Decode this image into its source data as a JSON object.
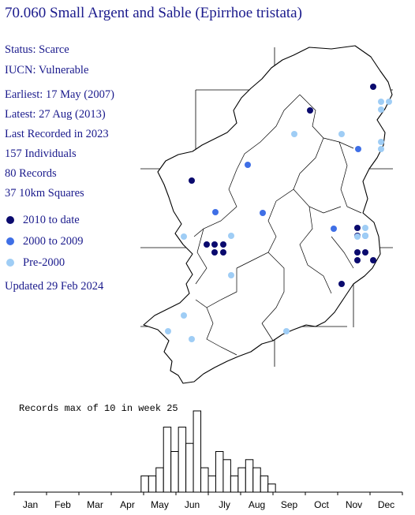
{
  "title": "70.060 Small Argent and Sable (Epirrhoe tristata)",
  "info": {
    "status": "Status: Scarce",
    "iucn": "IUCN: Vulnerable",
    "earliest": "Earliest: 17 May (2007)",
    "latest": "Latest: 27 Aug (2013)",
    "last_recorded": "Last Recorded in 2023",
    "individuals": "157 Individuals",
    "records": "80 Records",
    "squares": "37 10km Squares"
  },
  "legend": [
    {
      "label": "2010 to date",
      "color": "#0a0a6e"
    },
    {
      "label": "2000 to 2009",
      "color": "#3f6fe6"
    },
    {
      "label": "Pre-2000",
      "color": "#9fcdf5"
    }
  ],
  "updated": "Updated 29 Feb 2024",
  "histogram": {
    "label": "Records max of 10 in week 25",
    "max": 10,
    "months": [
      "Jan",
      "Feb",
      "Mar",
      "Apr",
      "May",
      "Jun",
      "Jly",
      "Aug",
      "Sep",
      "Oct",
      "Nov",
      "Dec"
    ],
    "weeks": [
      18,
      19,
      20,
      21,
      22,
      23,
      24,
      25,
      26,
      27,
      28,
      29,
      30,
      31,
      32,
      33,
      34,
      35,
      36
    ],
    "values": [
      2,
      2,
      3,
      8,
      5,
      8,
      6,
      10,
      3,
      2,
      5,
      4,
      2,
      3,
      4,
      3,
      2,
      1,
      0
    ]
  },
  "map": {
    "grid_lines": "gray",
    "records": [
      {
        "period": "2010 to date",
        "coords": [
          [
            47,
            5
          ],
          [
            42,
            21
          ],
          [
            -8,
            23
          ],
          [
            -8,
            34
          ],
          [
            -8,
            35
          ],
          [
            -8,
            36
          ],
          [
            -8,
            37
          ],
          [
            -8,
            38
          ],
          [
            -7,
            35
          ],
          [
            -7,
            36
          ],
          [
            -7,
            38
          ],
          [
            -6,
            38
          ]
        ]
      },
      {
        "period": "2000 to 2009",
        "coords": [
          [
            -8,
            25
          ],
          [
            -7,
            26
          ],
          [
            -6,
            31
          ],
          [
            -6,
            34
          ],
          [
            -6,
            32
          ]
        ]
      },
      {
        "period": "Pre-2000",
        "coords": [
          [
            -6,
            14
          ],
          [
            -6,
            15
          ],
          [
            -6,
            16
          ],
          [
            -6,
            17
          ]
        ]
      }
    ]
  }
}
